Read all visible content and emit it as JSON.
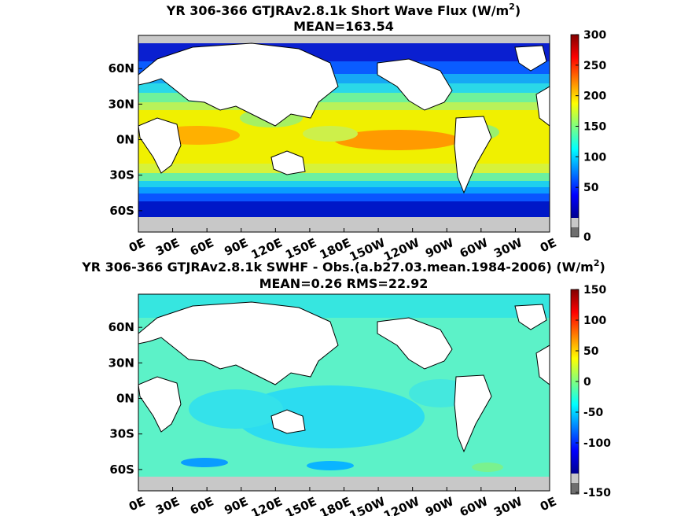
{
  "chart_data": [
    {
      "type": "heatmap",
      "title_main": "YR 306-366 GTJRAv2.8.1k  Short Wave Flux (W/m",
      "title_sup": "2",
      "title_close": ")",
      "subtitle": "MEAN=163.54",
      "x_ticks": [
        "0E",
        "30E",
        "60E",
        "90E",
        "120E",
        "150E",
        "180E",
        "150W",
        "120W",
        "90W",
        "60W",
        "30W",
        "0E"
      ],
      "y_ticks": [
        "60N",
        "30N",
        "0N",
        "30S",
        "60S"
      ],
      "y_values": [
        60,
        30,
        0,
        -30,
        -60
      ],
      "xlim": [
        0,
        360
      ],
      "ylim": [
        -78,
        88
      ],
      "colorbar": {
        "ticks": [
          "300",
          "250",
          "200",
          "150",
          "100",
          "50",
          "0"
        ],
        "values": [
          300,
          250,
          200,
          150,
          100,
          50,
          0
        ],
        "range": [
          0,
          300
        ]
      }
    },
    {
      "type": "heatmap",
      "title_main": "YR 306-366 GTJRAv2.8.1k SWHF - Obs.(a.b27.03.mean.1984-2006) (W/m",
      "title_sup": "2",
      "title_close": ")",
      "subtitle": "MEAN=0.26 RMS=22.92",
      "x_ticks": [
        "0E",
        "30E",
        "60E",
        "90E",
        "120E",
        "150E",
        "180E",
        "150W",
        "120W",
        "90W",
        "60W",
        "30W",
        "0E"
      ],
      "y_ticks": [
        "60N",
        "30N",
        "0N",
        "30S",
        "60S"
      ],
      "y_values": [
        60,
        30,
        0,
        -30,
        -60
      ],
      "xlim": [
        0,
        360
      ],
      "ylim": [
        -78,
        88
      ],
      "colorbar": {
        "ticks": [
          "150",
          "100",
          "50",
          "0",
          "-50",
          "-100",
          "-150"
        ],
        "values": [
          150,
          100,
          50,
          0,
          -50,
          -100,
          -150
        ],
        "range": [
          -150,
          150
        ]
      }
    }
  ]
}
